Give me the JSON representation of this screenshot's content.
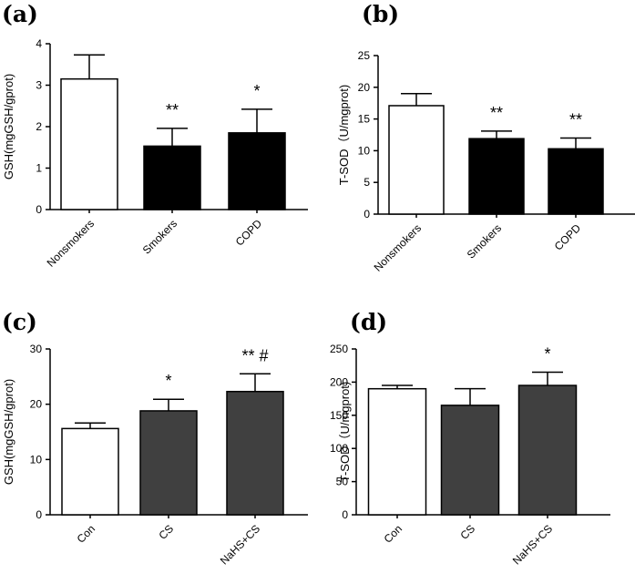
{
  "chart_data": [
    {
      "panel": "(a)",
      "type": "bar",
      "ylabel": "GSH(mgGSH/gprot)",
      "ylim": [
        0,
        4
      ],
      "yticks": [
        "0",
        "1",
        "2",
        "3",
        "4"
      ],
      "categories": [
        "Nonsmokers",
        "Smokers",
        "COPD"
      ],
      "values": [
        3.15,
        1.53,
        1.85
      ],
      "errors": [
        0.58,
        0.43,
        0.57
      ],
      "annotations": [
        "",
        "**",
        "*"
      ],
      "fills": [
        "#ffffff",
        "#000000",
        "#000000"
      ]
    },
    {
      "panel": "(b)",
      "type": "bar",
      "ylabel": "T-SOD（U/mgprot)",
      "ylim": [
        0,
        25
      ],
      "yticks": [
        "0",
        "5",
        "10",
        "15",
        "20",
        "25"
      ],
      "categories": [
        "Nonsmokers",
        "Smokers",
        "COPD"
      ],
      "values": [
        17.1,
        11.9,
        10.3
      ],
      "errors": [
        1.9,
        1.2,
        1.7
      ],
      "annotations": [
        "",
        "**",
        "**"
      ],
      "fills": [
        "#ffffff",
        "#000000",
        "#000000"
      ]
    },
    {
      "panel": "(c)",
      "type": "bar",
      "ylabel": "GSH(mgGSH/gprot)",
      "ylim": [
        0,
        30
      ],
      "yticks": [
        "0",
        "10",
        "20",
        "30"
      ],
      "categories": [
        "Con",
        "CS",
        "NaHS+CS"
      ],
      "values": [
        15.6,
        18.8,
        22.3
      ],
      "errors": [
        1.0,
        2.1,
        3.2
      ],
      "annotations": [
        "",
        "*",
        "** #"
      ],
      "fills": [
        "#ffffff",
        "#404040",
        "#404040"
      ]
    },
    {
      "panel": "(d)",
      "type": "bar",
      "ylabel": "T-SOD（U/mgprot)",
      "ylim": [
        0,
        250
      ],
      "yticks": [
        "0",
        "50",
        "100",
        "150",
        "200",
        "250"
      ],
      "categories": [
        "Con",
        "CS",
        "NaHS+CS"
      ],
      "values": [
        190,
        165,
        195
      ],
      "errors": [
        5,
        25,
        20
      ],
      "annotations": [
        "",
        "",
        "*"
      ],
      "fills": [
        "#ffffff",
        "#404040",
        "#404040"
      ]
    }
  ]
}
